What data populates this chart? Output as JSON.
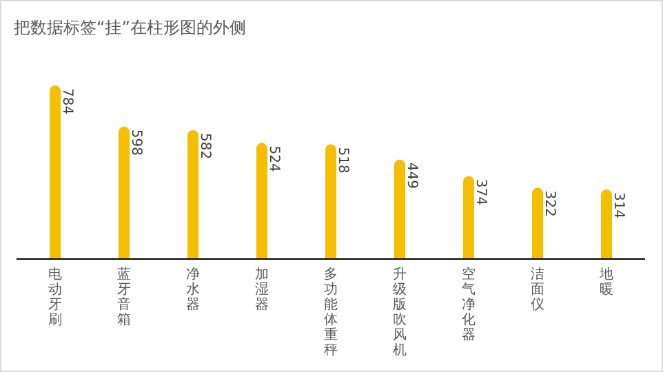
{
  "chart_data": {
    "type": "bar",
    "title": "把数据标签“挂”在柱形图的外侧",
    "categories": [
      "电动牙刷",
      "蓝牙音箱",
      "净水器",
      "加湿器",
      "多功能体重秤",
      "升级版吹风机",
      "空气净化器",
      "洁面仪",
      "地暖"
    ],
    "values": [
      784,
      598,
      582,
      524,
      518,
      449,
      374,
      322,
      314
    ],
    "color": "#f5be00",
    "data_labels": true
  }
}
